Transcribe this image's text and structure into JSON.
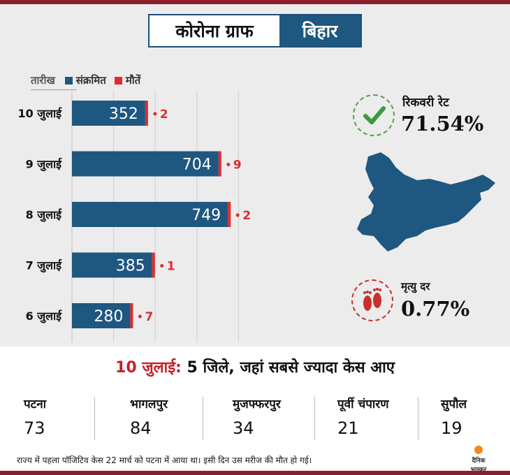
{
  "title": {
    "left": "कोरोना ग्राफ",
    "right": "बिहार"
  },
  "legend": {
    "date_label": "तारीख",
    "infected_label": "संक्रमित",
    "deaths_label": "मौतें"
  },
  "colors": {
    "infected": "#1e5780",
    "deaths": "#e02b2f",
    "grid": "#cfcfcf",
    "map": "#1e5780"
  },
  "chart_data": {
    "type": "bar",
    "orientation": "horizontal",
    "categories": [
      "10 जुलाई",
      "9 जुलाई",
      "8 जुलाई",
      "7 जुलाई",
      "6 जुलाई"
    ],
    "series": [
      {
        "name": "संक्रमित",
        "values": [
          352,
          704,
          749,
          385,
          280
        ]
      },
      {
        "name": "मौतें",
        "values": [
          2,
          9,
          2,
          1,
          7
        ]
      }
    ],
    "grid": true
  },
  "recovery": {
    "label": "रिकवरी रेट",
    "value": "71.54%"
  },
  "mortality": {
    "label": "मृत्यु दर",
    "value": "0.77%"
  },
  "headline": {
    "date": "10 जुलाई:",
    "text": " 5 जिले, जहां सबसे ज्यादा केस आए"
  },
  "districts": [
    {
      "name": "पटना",
      "value": "73"
    },
    {
      "name": "भागलपुर",
      "value": "84"
    },
    {
      "name": "मुजफ्फरपुर",
      "value": "34"
    },
    {
      "name": "पूर्वी चंपारण",
      "value": "21"
    },
    {
      "name": "सुपौल",
      "value": "19"
    }
  ],
  "footer": "राज्य में पहला पॉजिटिव केस 22 मार्च को पटना में आया था। इसी दिन उस मरीज की मौत हो गई।",
  "logo": {
    "line1": "दैनिक",
    "line2": "भास्कर"
  }
}
